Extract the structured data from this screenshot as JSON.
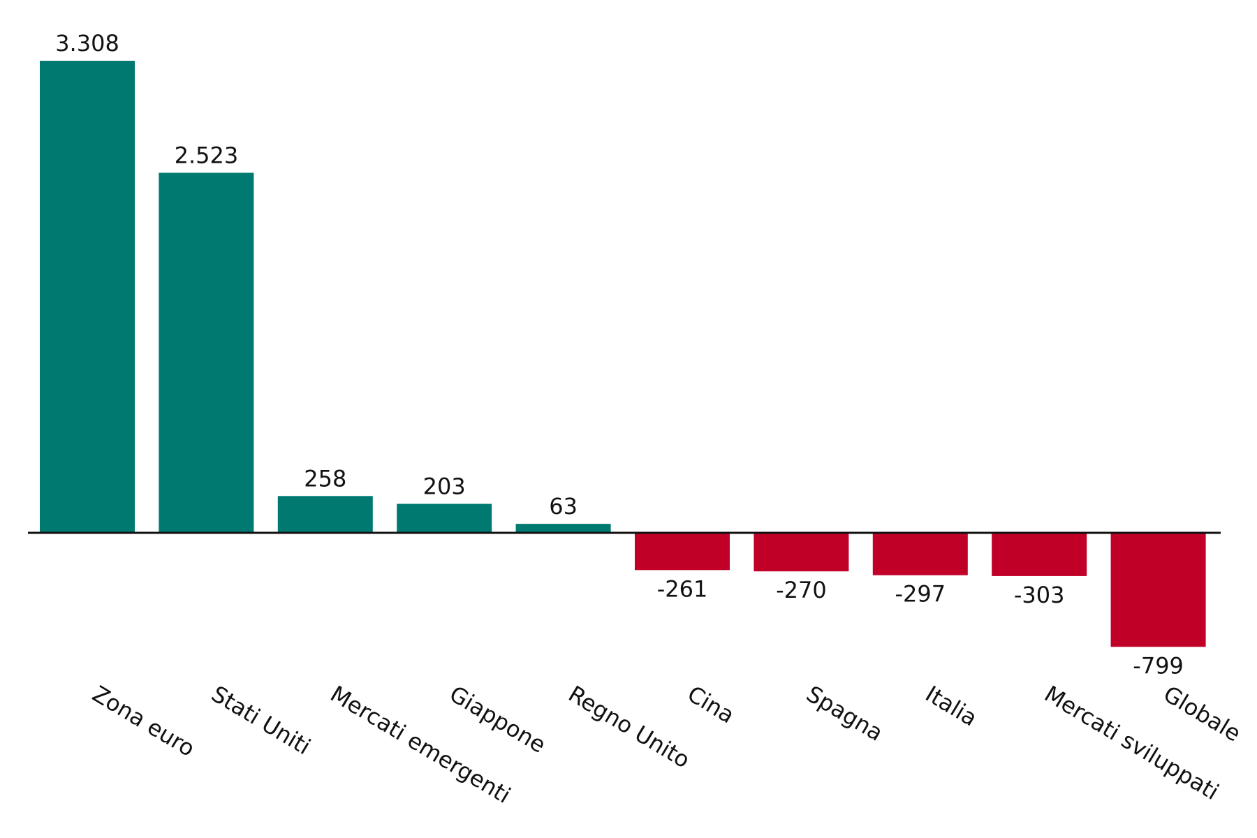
{
  "chart_data": {
    "type": "bar",
    "title": "",
    "xlabel": "",
    "ylabel": "",
    "categories": [
      "Zona euro",
      "Stati Uniti",
      "Mercati emergenti",
      "Giappone",
      "Regno Unito",
      "Cina",
      "Spagna",
      "Italia",
      "Mercati sviluppati",
      "Globale"
    ],
    "values": [
      3308,
      2523,
      258,
      203,
      63,
      -261,
      -270,
      -297,
      -303,
      -799
    ],
    "value_labels": [
      "3.308",
      "2.523",
      "258",
      "203",
      "63",
      "-261",
      "-270",
      "-297",
      "-303",
      "-799"
    ],
    "ylim": [
      -1000,
      3500
    ],
    "grid": false,
    "legend": "none",
    "colors": {
      "positive": "#007A70",
      "negative": "#C10028",
      "axis": "#111111",
      "text": "#111111"
    }
  }
}
